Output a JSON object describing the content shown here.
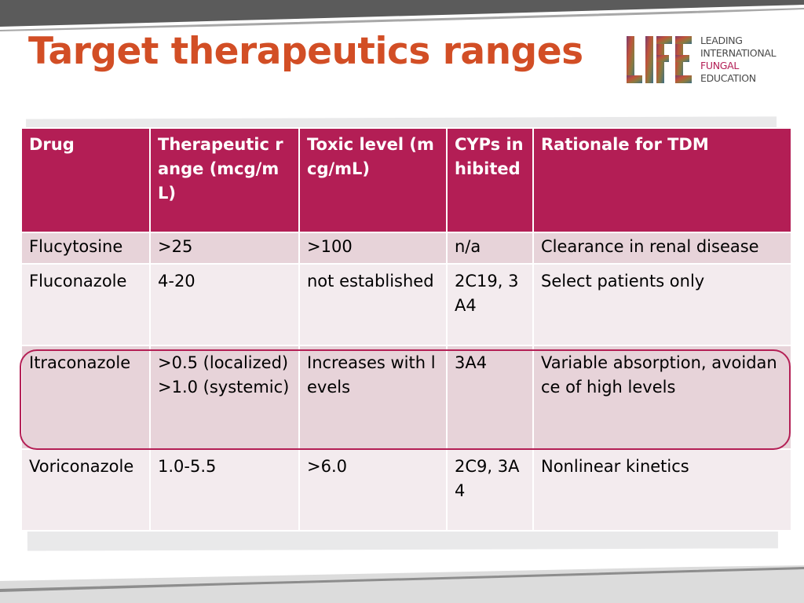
{
  "title": "Target therapeutics ranges",
  "colors": {
    "title": "#d24e25",
    "header_bg": "#b31e55",
    "row_odd": "#e7d3d9",
    "row_even": "#f3ebee",
    "highlight_border": "#b41f55",
    "top_band": "#5b5b5b",
    "bottom_band": "#dcdcdc"
  },
  "logo": {
    "mark_text": "LIFE",
    "lines": [
      "LEADING",
      "INTERNATIONAL",
      "FUNGAL",
      "EDUCATION"
    ],
    "accent_line_color": "#b31e55"
  },
  "table": {
    "headers": [
      "Drug",
      "Therapeutic range (mcg/mL)",
      "Toxic level (mcg/mL)",
      "CYPs inhibited",
      "Rationale for TDM"
    ],
    "rows": [
      [
        "Flucytosine",
        ">25",
        ">100",
        "n/a",
        "Clearance in renal disease"
      ],
      [
        "Fluconazole",
        "4-20",
        "not established",
        "2C19, 3A4",
        "Select patients only"
      ],
      [
        "Itraconazole",
        ">0.5 (localized) >1.0 (systemic)",
        "Increases with levels",
        "3A4",
        "Variable absorption, avoidance of high levels"
      ],
      [
        "Voriconazole",
        "1.0-5.5",
        ">6.0",
        "2C9, 3A4",
        "Nonlinear kinetics"
      ]
    ],
    "highlighted_row": "Itraconazole"
  }
}
